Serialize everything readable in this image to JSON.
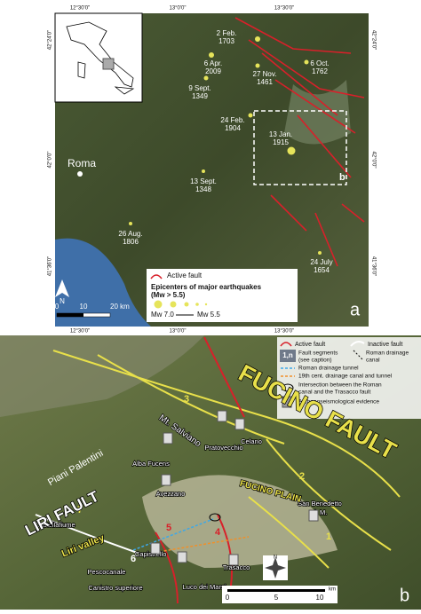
{
  "panel_a": {
    "coords": {
      "top": [
        "12°30'0\"",
        "13°0'0\"",
        "13°30'0\""
      ],
      "bottom": [
        "12°30'0\"",
        "13°0'0\"",
        "13°30'0\""
      ],
      "left": [
        "42°24'0\"",
        "42°0'0\"",
        "41°36'0\""
      ],
      "right": [
        "42°24'0\"",
        "42°0'0\"",
        "41°36'0\""
      ]
    },
    "earthquakes": [
      {
        "date": "2 Feb.",
        "year": "1703"
      },
      {
        "date": "6 Apr.",
        "year": "2009"
      },
      {
        "date": "27 Nov.",
        "year": "1461"
      },
      {
        "date": "6 Oct.",
        "year": "1762"
      },
      {
        "date": "9 Sept.",
        "year": "1349"
      },
      {
        "date": "24 Feb.",
        "year": "1904"
      },
      {
        "date": "13 Jan.",
        "year": "1915"
      },
      {
        "date": "13 Sept.",
        "year": "1348"
      },
      {
        "date": "26 Aug.",
        "year": "1806"
      },
      {
        "date": "24 July",
        "year": "1654"
      }
    ],
    "city": "Roma",
    "inset_label": "b",
    "north": "N",
    "legend": {
      "fault": "Active fault",
      "epicenters": "Epicenters of major earthquakes",
      "epicenters_note": "(Mw > 5.5)",
      "mw_max": "Mw 7.0",
      "mw_min": "Mw 5.5"
    },
    "scale": [
      "0",
      "10",
      "20 km"
    ],
    "panel_label": "a"
  },
  "panel_b": {
    "legend": {
      "active": "Active fault",
      "inactive": "Inactive fault",
      "segment_symbol": "1,n",
      "segments": "Fault segments",
      "segments_note": "(see caption)",
      "roman_canal": "Roman drainage",
      "roman_canal_2": "canal",
      "roman_tunnel": "Roman drainage tunnel",
      "modern_canal": "19th cent. drainage canal and tunnel",
      "intersection": "Intersection between the Roman",
      "intersection_2": "canal and the Trasacco fault",
      "archaeo": "Archaeoseismological evidence"
    },
    "labels": {
      "fucino_fault": "FUCINO FAULT",
      "liri_fault": "LIRI FAULT",
      "fucino_plain": "FUCINO PLAIN",
      "piani": "Piani Palentini",
      "salviano": "Mt. Salviano",
      "liri_valley": "Liri valley"
    },
    "towns": [
      "Alba Fucens",
      "Celano",
      "Pratovecchio",
      "Avezzano",
      "San Benedetto",
      "d. M.",
      "Castellafiume",
      "Capistrello",
      "Pescocanale",
      "Canistro superiore",
      "Luco dei Marsi",
      "Trasacco"
    ],
    "segments": [
      "1",
      "2",
      "3",
      "4",
      "5",
      "6",
      "7"
    ],
    "north": "N",
    "scale": [
      "0",
      "5",
      "10",
      "km"
    ],
    "panel_label": "b"
  }
}
